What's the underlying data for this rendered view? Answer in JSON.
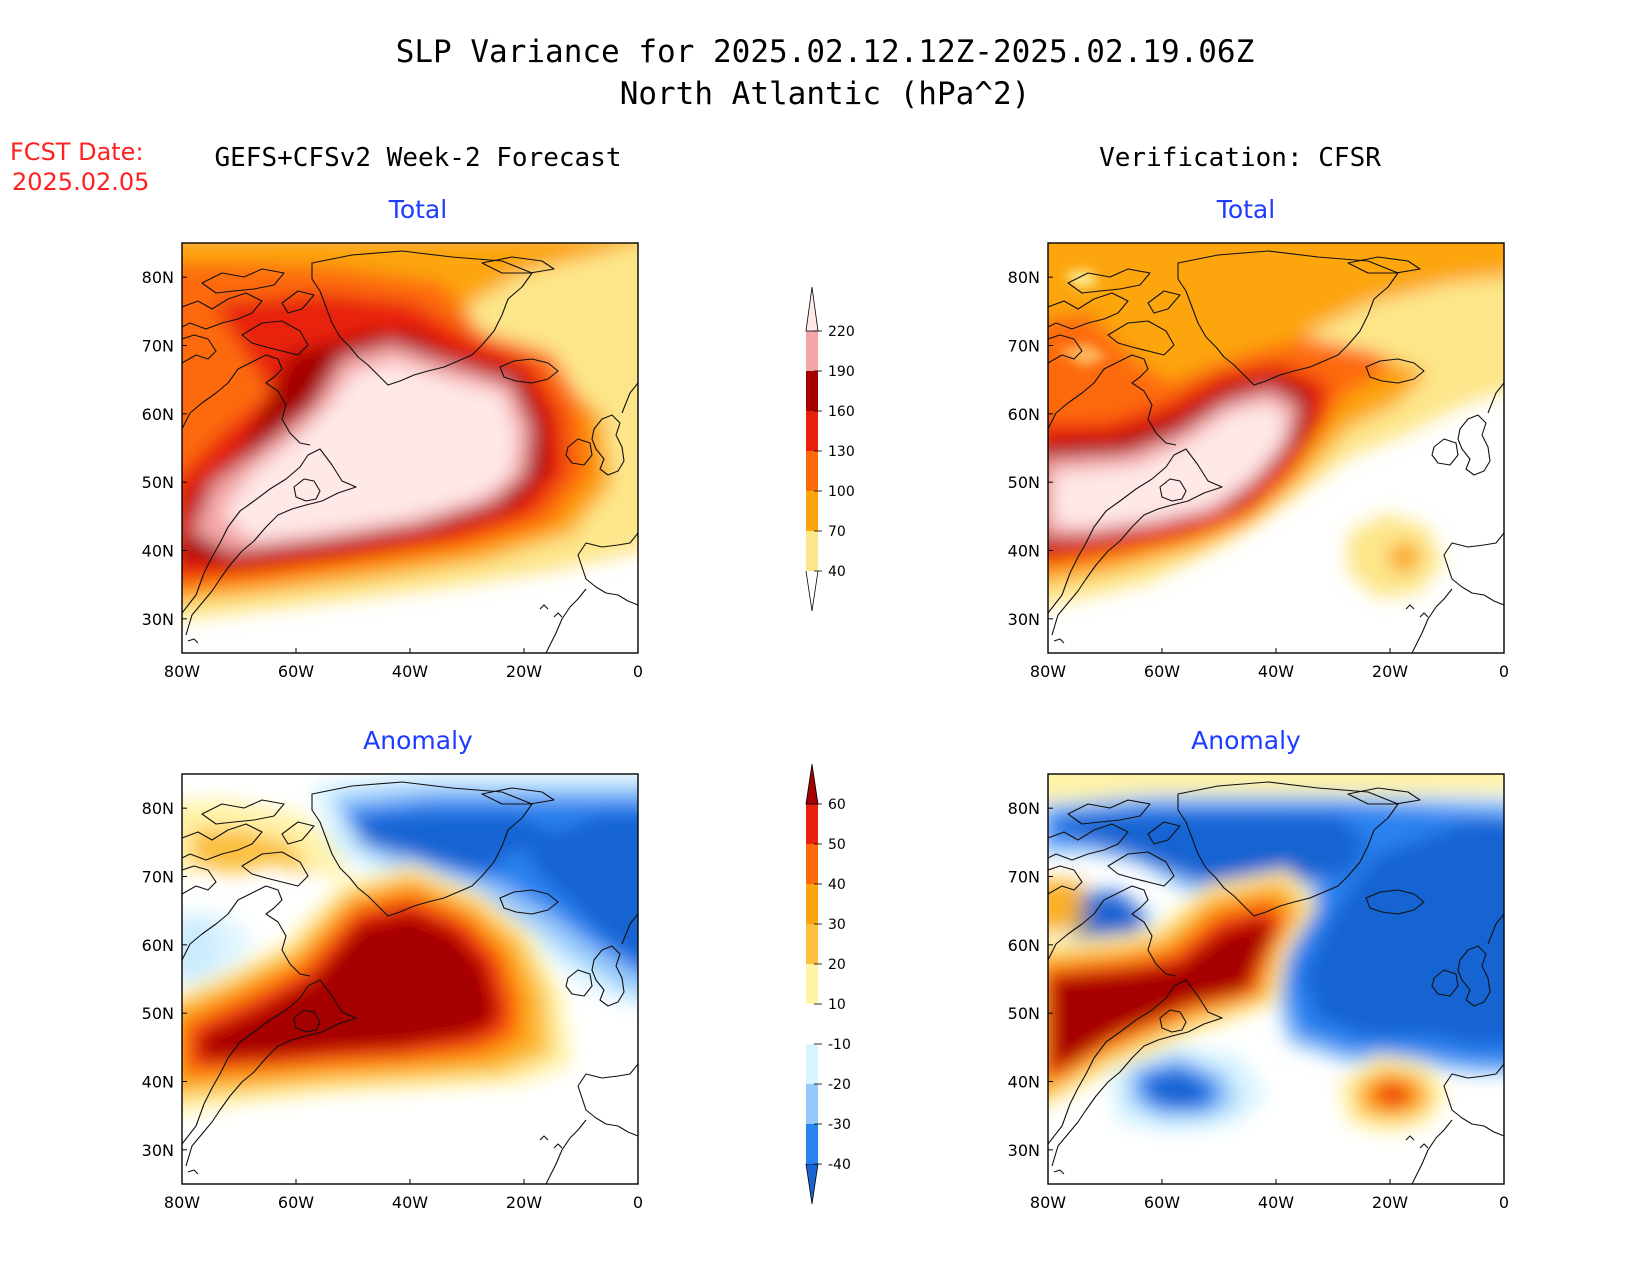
{
  "title": {
    "line1": "SLP Variance for 2025.02.12.12Z-2025.02.19.06Z",
    "line2": "North Atlantic (hPa^2)"
  },
  "fcst": {
    "label": "FCST Date:",
    "date": "2025.02.05"
  },
  "columns": {
    "left": "GEFS+CFSv2 Week-2 Forecast",
    "right": "Verification: CFSR"
  },
  "panels": {
    "fc_total": "Total",
    "vr_total": "Total",
    "fc_anom": "Anomaly",
    "vr_anom": "Anomaly"
  },
  "axes": {
    "lon_labels": [
      "80W",
      "60W",
      "40W",
      "20W",
      "0"
    ],
    "lat_labels": [
      "30N",
      "40N",
      "50N",
      "60N",
      "70N",
      "80N"
    ]
  },
  "colorbars": {
    "total": {
      "levels": [
        "40",
        "70",
        "100",
        "130",
        "160",
        "190",
        "220"
      ],
      "colors": [
        "#fde68a",
        "#fca50a",
        "#fd6a0a",
        "#e8200c",
        "#a50000",
        "#f4a6a6",
        "#ffe8e8"
      ]
    },
    "anomaly": {
      "levels": [
        "-40",
        "-30",
        "-20",
        "-10",
        "10",
        "20",
        "30",
        "40",
        "50",
        "60"
      ],
      "colors": [
        "#1964d2",
        "#2a82f0",
        "#96c8fa",
        "#d8f4ff",
        "#ffffff",
        "#fff3a8",
        "#fcc040",
        "#fca50a",
        "#fd6a0a",
        "#e8200c",
        "#a50000"
      ]
    }
  }
}
